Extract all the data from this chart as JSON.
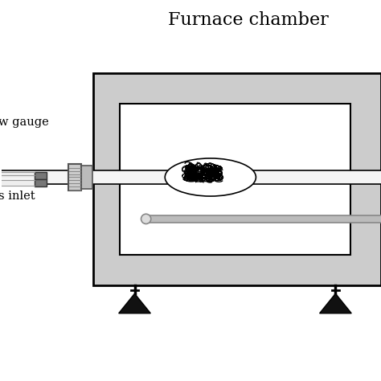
{
  "title": "Furnace chamber",
  "title_fontsize": 16,
  "bg_color": "#ffffff",
  "furnace_color": "#cccccc",
  "inner_box_color": "#ffffff",
  "label_flow_gauge": "w gauge",
  "label_gas_inlet": "s inlet"
}
